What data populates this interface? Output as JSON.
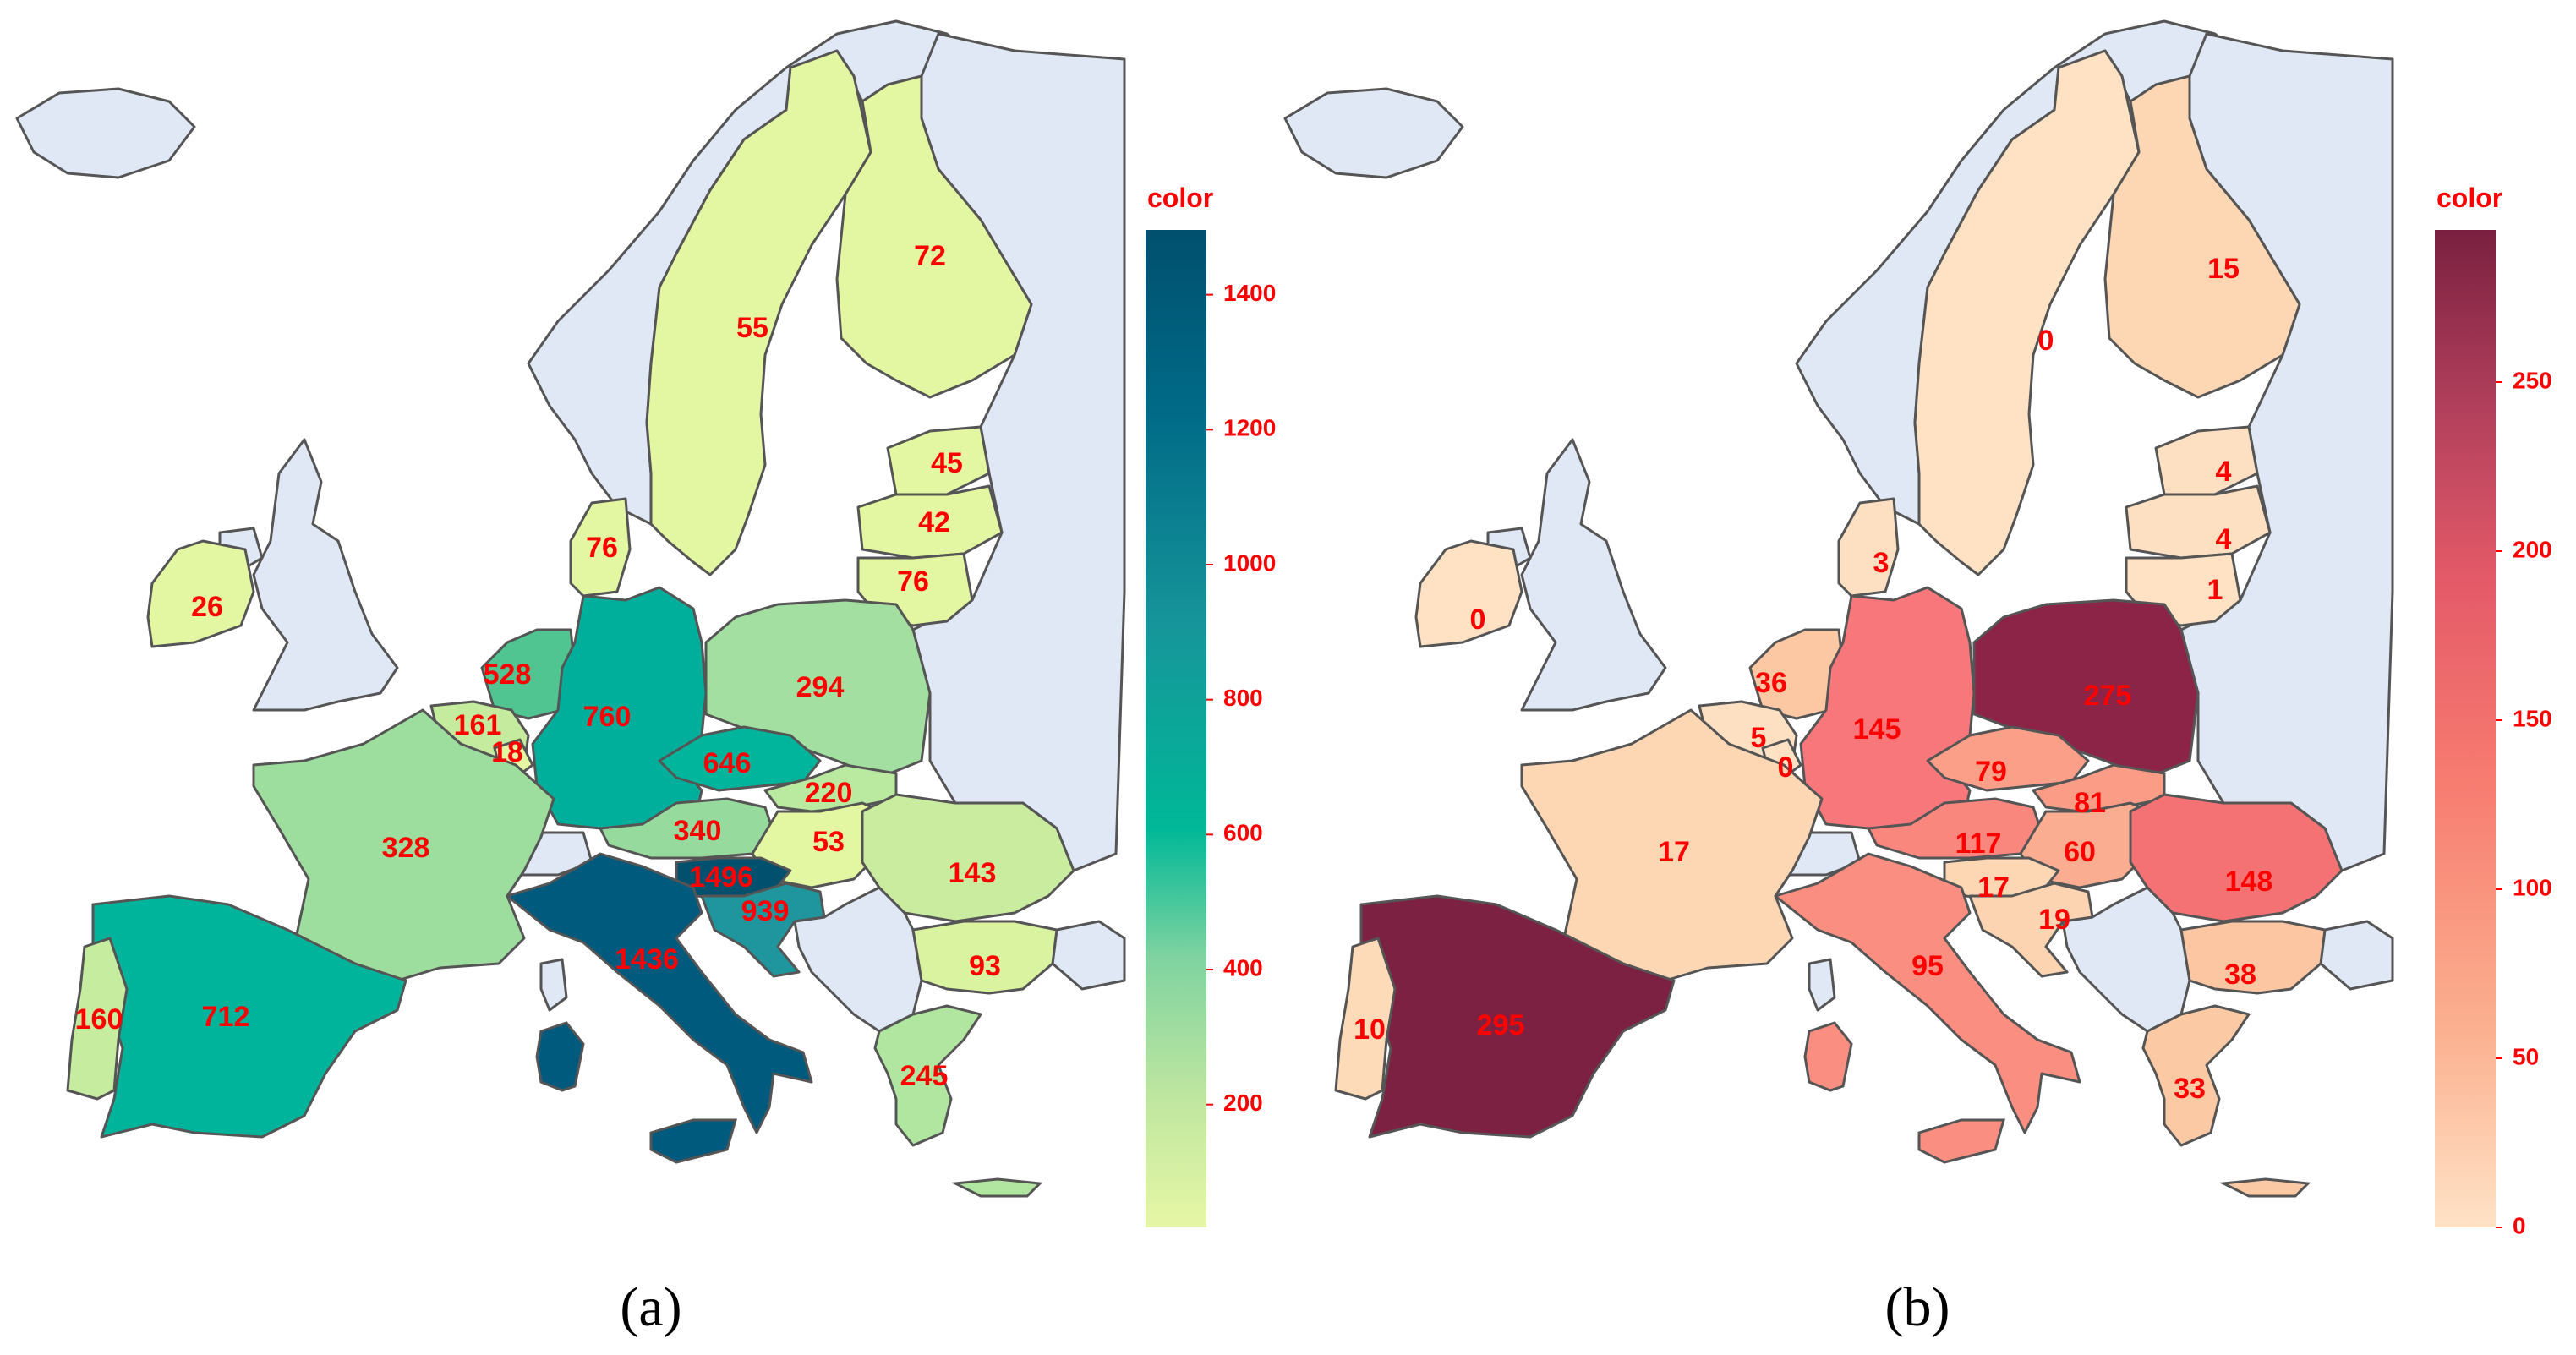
{
  "panels": [
    {
      "id": "a",
      "caption": "(a)",
      "colorbar": {
        "title": "color",
        "ticks": [
          "1400",
          "1200",
          "1000",
          "800",
          "600",
          "400",
          "200"
        ],
        "tick_values": [
          1400,
          1200,
          1000,
          800,
          600,
          400,
          200
        ],
        "range": [
          18,
          1496
        ],
        "colorscale": [
          "#e6f7a5",
          "#bfe6a0",
          "#7fd3a0",
          "#00b898",
          "#16969a",
          "#006a87",
          "#00506e"
        ]
      },
      "regions": [
        {
          "name": "Sweden",
          "value": "55",
          "fill": "#e3f7a2"
        },
        {
          "name": "Finland",
          "value": "72",
          "fill": "#e3f7a2"
        },
        {
          "name": "Estonia",
          "value": "45",
          "fill": "#e3f7a2"
        },
        {
          "name": "Latvia",
          "value": "42",
          "fill": "#e3f7a2"
        },
        {
          "name": "Lithuania",
          "value": "76",
          "fill": "#e3f7a2"
        },
        {
          "name": "Denmark",
          "value": "76",
          "fill": "#e3f7a2"
        },
        {
          "name": "Ireland",
          "value": "26",
          "fill": "#e3f7a2"
        },
        {
          "name": "Netherlands",
          "value": "528",
          "fill": "#50c592"
        },
        {
          "name": "Belgium",
          "value": "161",
          "fill": "#c5eb9f"
        },
        {
          "name": "Luxembourg",
          "value": "18",
          "fill": "#e3f7a2"
        },
        {
          "name": "Germany",
          "value": "760",
          "fill": "#00ae9c"
        },
        {
          "name": "Poland",
          "value": "294",
          "fill": "#a3dfa0"
        },
        {
          "name": "Czechia",
          "value": "646",
          "fill": "#00b59b"
        },
        {
          "name": "Slovakia",
          "value": "220",
          "fill": "#baea9f"
        },
        {
          "name": "Austria",
          "value": "340",
          "fill": "#96db9d"
        },
        {
          "name": "Hungary",
          "value": "53",
          "fill": "#e3f7a2"
        },
        {
          "name": "Slovenia",
          "value": "1496",
          "fill": "#00506e"
        },
        {
          "name": "Croatia",
          "value": "939",
          "fill": "#1f959d"
        },
        {
          "name": "France",
          "value": "328",
          "fill": "#9ddd9d"
        },
        {
          "name": "Spain",
          "value": "712",
          "fill": "#00b49b"
        },
        {
          "name": "Portugal",
          "value": "160",
          "fill": "#c6eca0"
        },
        {
          "name": "Italy",
          "value": "1436",
          "fill": "#005a7d"
        },
        {
          "name": "Romania",
          "value": "143",
          "fill": "#c9ec9f"
        },
        {
          "name": "Bulgaria",
          "value": "93",
          "fill": "#d9f3a1"
        },
        {
          "name": "Greece",
          "value": "245",
          "fill": "#b1e6a0"
        }
      ]
    },
    {
      "id": "b",
      "caption": "(b)",
      "colorbar": {
        "title": "color",
        "ticks": [
          "250",
          "200",
          "150",
          "100",
          "50",
          "0"
        ],
        "tick_values": [
          250,
          200,
          150,
          100,
          50,
          0
        ],
        "range": [
          0,
          295
        ],
        "colorscale": [
          "#ffe2c6",
          "#fbb08f",
          "#f77b70",
          "#e45a68",
          "#b2405c",
          "#7a2040"
        ]
      },
      "regions": [
        {
          "name": "Sweden",
          "value": "0",
          "fill": "#ffe1c4"
        },
        {
          "name": "Finland",
          "value": "15",
          "fill": "#fdd6b4"
        },
        {
          "name": "Estonia",
          "value": "4",
          "fill": "#fde0c2"
        },
        {
          "name": "Latvia",
          "value": "4",
          "fill": "#fde0c2"
        },
        {
          "name": "Lithuania",
          "value": "1",
          "fill": "#ffe1c4"
        },
        {
          "name": "Denmark",
          "value": "3",
          "fill": "#fde0c2"
        },
        {
          "name": "Ireland",
          "value": "0",
          "fill": "#ffe1c4"
        },
        {
          "name": "Netherlands",
          "value": "36",
          "fill": "#fcc7a3"
        },
        {
          "name": "Belgium",
          "value": "5",
          "fill": "#fde0c2"
        },
        {
          "name": "Luxembourg",
          "value": "0",
          "fill": "#ffe1c4"
        },
        {
          "name": "Germany",
          "value": "145",
          "fill": "#f7777a"
        },
        {
          "name": "Poland",
          "value": "275",
          "fill": "#8b2447"
        },
        {
          "name": "Czechia",
          "value": "79",
          "fill": "#fb9f89"
        },
        {
          "name": "Slovakia",
          "value": "81",
          "fill": "#fb9c87"
        },
        {
          "name": "Austria",
          "value": "117",
          "fill": "#f9877e"
        },
        {
          "name": "Hungary",
          "value": "60",
          "fill": "#fbad92"
        },
        {
          "name": "Slovenia",
          "value": "17",
          "fill": "#fdd6b4"
        },
        {
          "name": "Croatia",
          "value": "19",
          "fill": "#fdd4b2"
        },
        {
          "name": "France",
          "value": "17",
          "fill": "#fdd6b4"
        },
        {
          "name": "Spain",
          "value": "295",
          "fill": "#7c2142"
        },
        {
          "name": "Portugal",
          "value": "10",
          "fill": "#fddab8"
        },
        {
          "name": "Italy",
          "value": "95",
          "fill": "#fa8e80"
        },
        {
          "name": "Romania",
          "value": "148",
          "fill": "#f47274"
        },
        {
          "name": "Bulgaria",
          "value": "38",
          "fill": "#fcc6a2"
        },
        {
          "name": "Greece",
          "value": "33",
          "fill": "#fcc9a5"
        }
      ]
    }
  ],
  "other_land_fill": "#dfe8f4",
  "border_color": "#555555"
}
